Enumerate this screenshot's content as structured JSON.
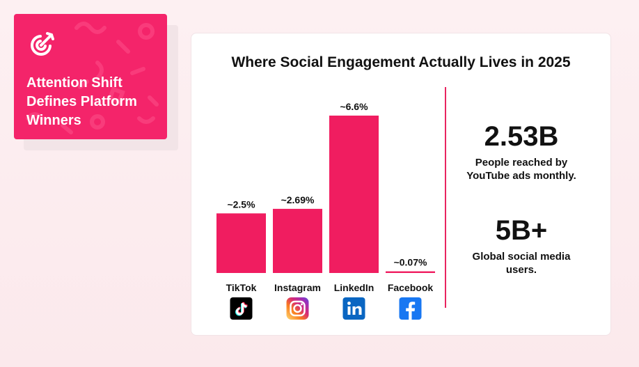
{
  "badge": {
    "title": "Attention Shift\nDefines Platform\nWinners",
    "icon": "target-arrow-icon"
  },
  "chart_data": {
    "type": "bar",
    "title": "Where Social Engagement Actually Lives in 2025",
    "categories": [
      "TikTok",
      "Instagram",
      "LinkedIn",
      "Facebook"
    ],
    "values": [
      2.5,
      2.69,
      6.6,
      0.07
    ],
    "value_labels": [
      "~2.5%",
      "~2.69%",
      "~6.6%",
      "~0.07%"
    ],
    "ylim": [
      0,
      6.6
    ],
    "grid": false,
    "bar_color": "#f01d60",
    "icons": [
      "tiktok-icon",
      "instagram-icon",
      "linkedin-icon",
      "facebook-icon"
    ]
  },
  "stats": [
    {
      "value": "2.53B",
      "description": "People reached by\nYouTube ads monthly."
    },
    {
      "value": "5B+",
      "description": "Global social media\nusers."
    }
  ],
  "colors": {
    "accent": "#f4246a",
    "bar": "#f01d60",
    "linkedin": "#0a66c2",
    "facebook": "#1877f2"
  }
}
